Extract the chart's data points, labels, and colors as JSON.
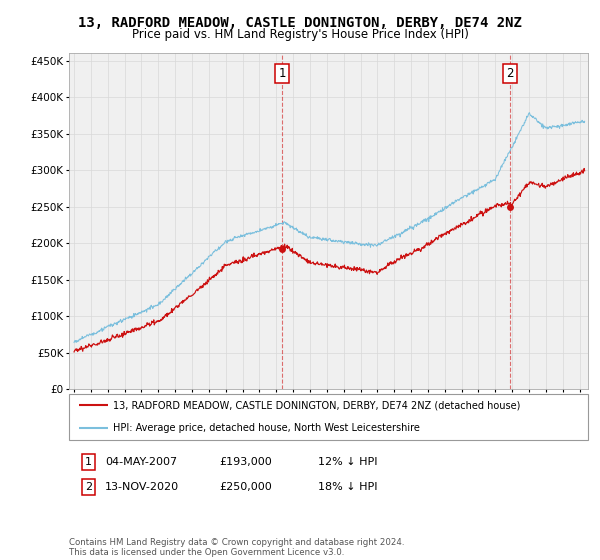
{
  "title": "13, RADFORD MEADOW, CASTLE DONINGTON, DERBY, DE74 2NZ",
  "subtitle": "Price paid vs. HM Land Registry's House Price Index (HPI)",
  "ylim": [
    0,
    460000
  ],
  "yticks": [
    0,
    50000,
    100000,
    150000,
    200000,
    250000,
    300000,
    350000,
    400000,
    450000
  ],
  "xlim_start": 1994.7,
  "xlim_end": 2025.5,
  "sale1_year": 2007.35,
  "sale1_price": 193000,
  "sale2_year": 2020.87,
  "sale2_price": 250000,
  "legend_line1": "13, RADFORD MEADOW, CASTLE DONINGTON, DERBY, DE74 2NZ (detached house)",
  "legend_line2": "HPI: Average price, detached house, North West Leicestershire",
  "annot1_date": "04-MAY-2007",
  "annot1_price": "£193,000",
  "annot1_hpi": "12% ↓ HPI",
  "annot2_date": "13-NOV-2020",
  "annot2_price": "£250,000",
  "annot2_hpi": "18% ↓ HPI",
  "footnote": "Contains HM Land Registry data © Crown copyright and database right 2024.\nThis data is licensed under the Open Government Licence v3.0.",
  "hpi_color": "#7bbfdd",
  "sale_color": "#cc1111",
  "bg_color": "#f0f0f0",
  "grid_color": "#d8d8d8",
  "title_fontsize": 10,
  "subtitle_fontsize": 8.5,
  "axis_fontsize": 7.5
}
